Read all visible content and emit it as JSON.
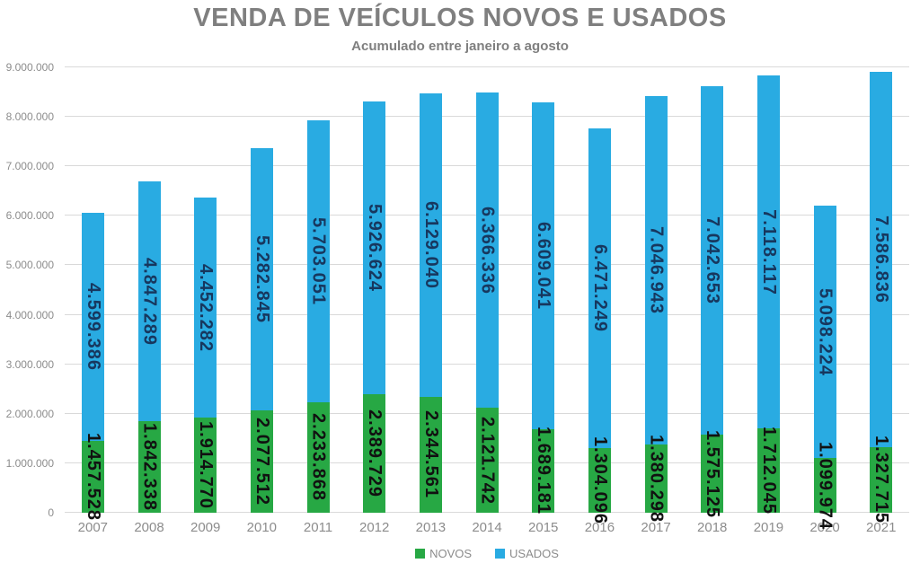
{
  "title": "VENDA DE VEÍCULOS NOVOS E USADOS",
  "subtitle": "Acumulado entre janeiro a agosto",
  "colors": {
    "novos": "#27A844",
    "usados": "#29ABE2",
    "title_text": "#7F7F7F",
    "axis_text": "#8C8C8C",
    "gridline": "#D9D9D9",
    "label_novos": "#111111",
    "label_usados": "#17375E"
  },
  "legend": {
    "items": [
      {
        "label": "NOVOS",
        "color_key": "novos"
      },
      {
        "label": "USADOS",
        "color_key": "usados"
      }
    ]
  },
  "chart_data": {
    "type": "bar",
    "stacked": true,
    "title": "VENDA DE VEÍCULOS NOVOS E USADOS",
    "subtitle": "Acumulado entre janeiro a agosto",
    "categories": [
      "2007",
      "2008",
      "2009",
      "2010",
      "2011",
      "2012",
      "2013",
      "2014",
      "2015",
      "2016",
      "2017",
      "2018",
      "2019",
      "2020",
      "2021"
    ],
    "series": [
      {
        "name": "NOVOS",
        "color_key": "novos",
        "values": [
          1457528,
          1842338,
          1914770,
          2077512,
          2233868,
          2389729,
          2344561,
          2121742,
          1689181,
          1304096,
          1380298,
          1575125,
          1712045,
          1099974,
          1327715
        ],
        "labels": [
          "1.457.528",
          "1.842.338",
          "1.914.770",
          "2.077.512",
          "2.233.868",
          "2.389.729",
          "2.344.561",
          "2.121.742",
          "1.689.181",
          "1.304.096",
          "1.380.298",
          "1.575.125",
          "1.712.045",
          "1.099.974",
          "1.327.715"
        ]
      },
      {
        "name": "USADOS",
        "color_key": "usados",
        "values": [
          4599386,
          4847289,
          4452282,
          5282845,
          5703051,
          5926624,
          6129040,
          6366336,
          6609041,
          6471249,
          7046943,
          7042653,
          7118117,
          5098224,
          7586836
        ],
        "labels": [
          "4.599.386",
          "4.847.289",
          "4.452.282",
          "5.282.845",
          "5.703.051",
          "5.926.624",
          "6.129.040",
          "6.366.336",
          "6.609.041",
          "6.471.249",
          "7.046.943",
          "7.042.653",
          "7.118.117",
          "5.098.224",
          "7.586.836"
        ]
      }
    ],
    "ylim": [
      0,
      9000000
    ],
    "ytick_step": 1000000,
    "ytick_labels": [
      "0",
      "1.000.000",
      "2.000.000",
      "3.000.000",
      "4.000.000",
      "5.000.000",
      "6.000.000",
      "7.000.000",
      "8.000.000",
      "9.000.000"
    ],
    "grid": "horizontal",
    "legend_position": "bottom",
    "bar_label_rotation": "vertical"
  }
}
